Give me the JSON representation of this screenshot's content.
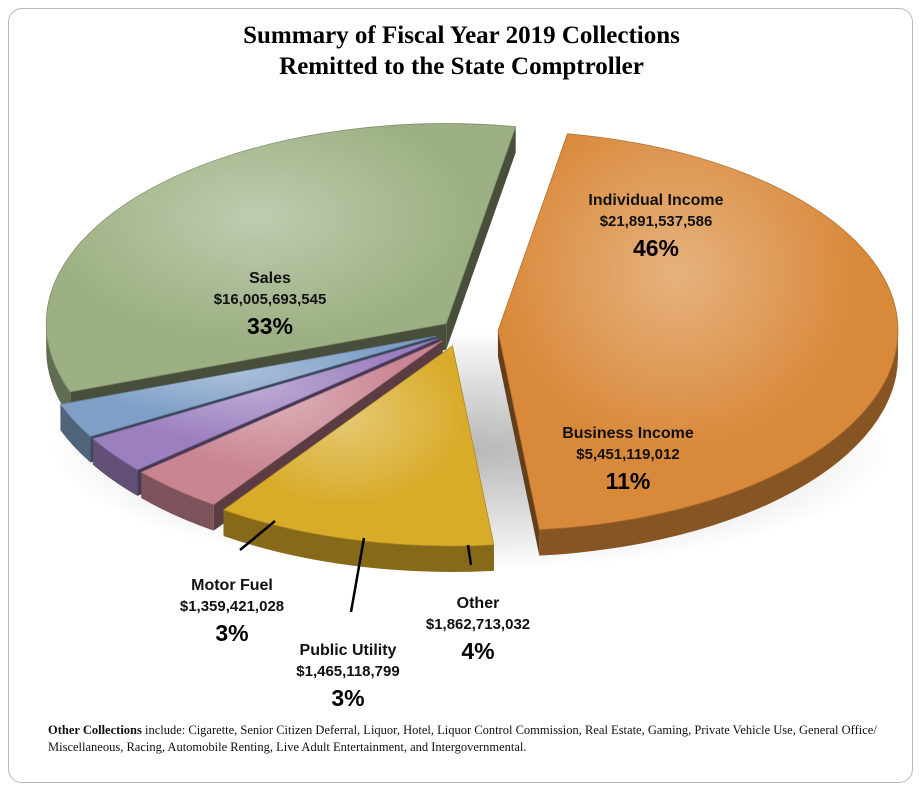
{
  "title": {
    "line1": "Summary of Fiscal Year 2019 Collections",
    "line2": "Remitted to the State Comptroller"
  },
  "chart_data": {
    "type": "pie",
    "style": "3d-exploded",
    "title": "Summary of Fiscal Year 2019 Collections Remitted to the State Comptroller",
    "slices": [
      {
        "name": "Individual Income",
        "value": 21891537586,
        "amount_label": "$21,891,537,586",
        "percent_label": "46%",
        "color": "#d9893a"
      },
      {
        "name": "Business Income",
        "value": 5451119012,
        "amount_label": "$5,451,119,012",
        "percent_label": "11%",
        "color": "#d8ab28"
      },
      {
        "name": "Other",
        "value": 1862713032,
        "amount_label": "$1,862,713,032",
        "percent_label": "4%",
        "color": "#c98592"
      },
      {
        "name": "Public Utility",
        "value": 1465118799,
        "amount_label": "$1,465,118,799",
        "percent_label": "3%",
        "color": "#9c7fbf"
      },
      {
        "name": "Motor Fuel",
        "value": 1359421028,
        "amount_label": "$1,359,421,028",
        "percent_label": "3%",
        "color": "#7f9fc7"
      },
      {
        "name": "Sales",
        "value": 16005693545,
        "amount_label": "$16,005,693,545",
        "percent_label": "33%",
        "color": "#9db083"
      }
    ]
  },
  "footnote": {
    "bold": "Other Collections",
    "text": " include: Cigarette, Senior Citizen Deferral, Liquor, Hotel, Liquor Control Commission, Real Estate, Gaming, Private Vehicle Use, General Office/ Miscellaneous, Racing, Automobile Renting, Live Adult Entertainment, and Intergovernmental."
  }
}
